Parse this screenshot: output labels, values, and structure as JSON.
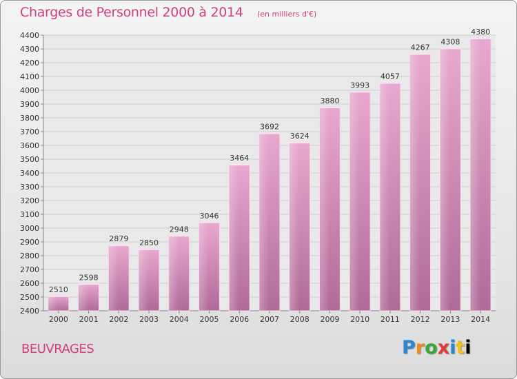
{
  "header": {
    "title": "Charges de Personnel 2000 à 2014",
    "subtitle": "(en milliers d'€)"
  },
  "footer": {
    "place": "BEUVRAGES",
    "logo_letters": [
      "P",
      "r",
      "o",
      "x",
      "i",
      "t",
      "i"
    ]
  },
  "colors": {
    "title": "#d13f7f",
    "bar_top": "#e8a8cf",
    "bar_bottom": "#b06a98",
    "grid": "#cfcfcf"
  },
  "chart_data": {
    "type": "bar",
    "title": "Charges de Personnel 2000 à 2014",
    "subtitle": "(en milliers d'€)",
    "categories": [
      "2000",
      "2001",
      "2002",
      "2003",
      "2004",
      "2005",
      "2006",
      "2007",
      "2008",
      "2009",
      "2010",
      "2011",
      "2012",
      "2013",
      "2014"
    ],
    "values": [
      2510,
      2598,
      2879,
      2850,
      2948,
      3046,
      3464,
      3692,
      3624,
      3880,
      3993,
      4057,
      4267,
      4308,
      4380
    ],
    "ylim": [
      2400,
      4400
    ],
    "yticks": [
      2400,
      2500,
      2600,
      2700,
      2800,
      2900,
      3000,
      3100,
      3200,
      3300,
      3400,
      3500,
      3600,
      3700,
      3800,
      3900,
      4000,
      4100,
      4200,
      4300,
      4400
    ],
    "grid": true,
    "data_labels": true
  }
}
